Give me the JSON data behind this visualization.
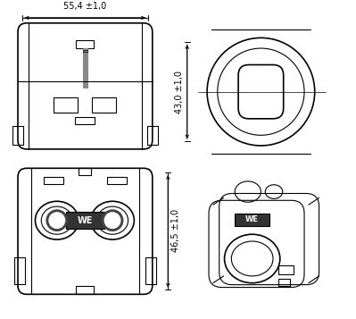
{
  "bg_color": "#ffffff",
  "line_color": "#000000",
  "dim_color": "#000000",
  "gray_color": "#888888",
  "light_gray": "#cccccc",
  "dim55": "55,4 ±1,0",
  "dim43": "43,0 ±1,0",
  "dim46": "46,5 ±1,0",
  "figsize": [
    3.99,
    3.57
  ],
  "dpi": 100
}
